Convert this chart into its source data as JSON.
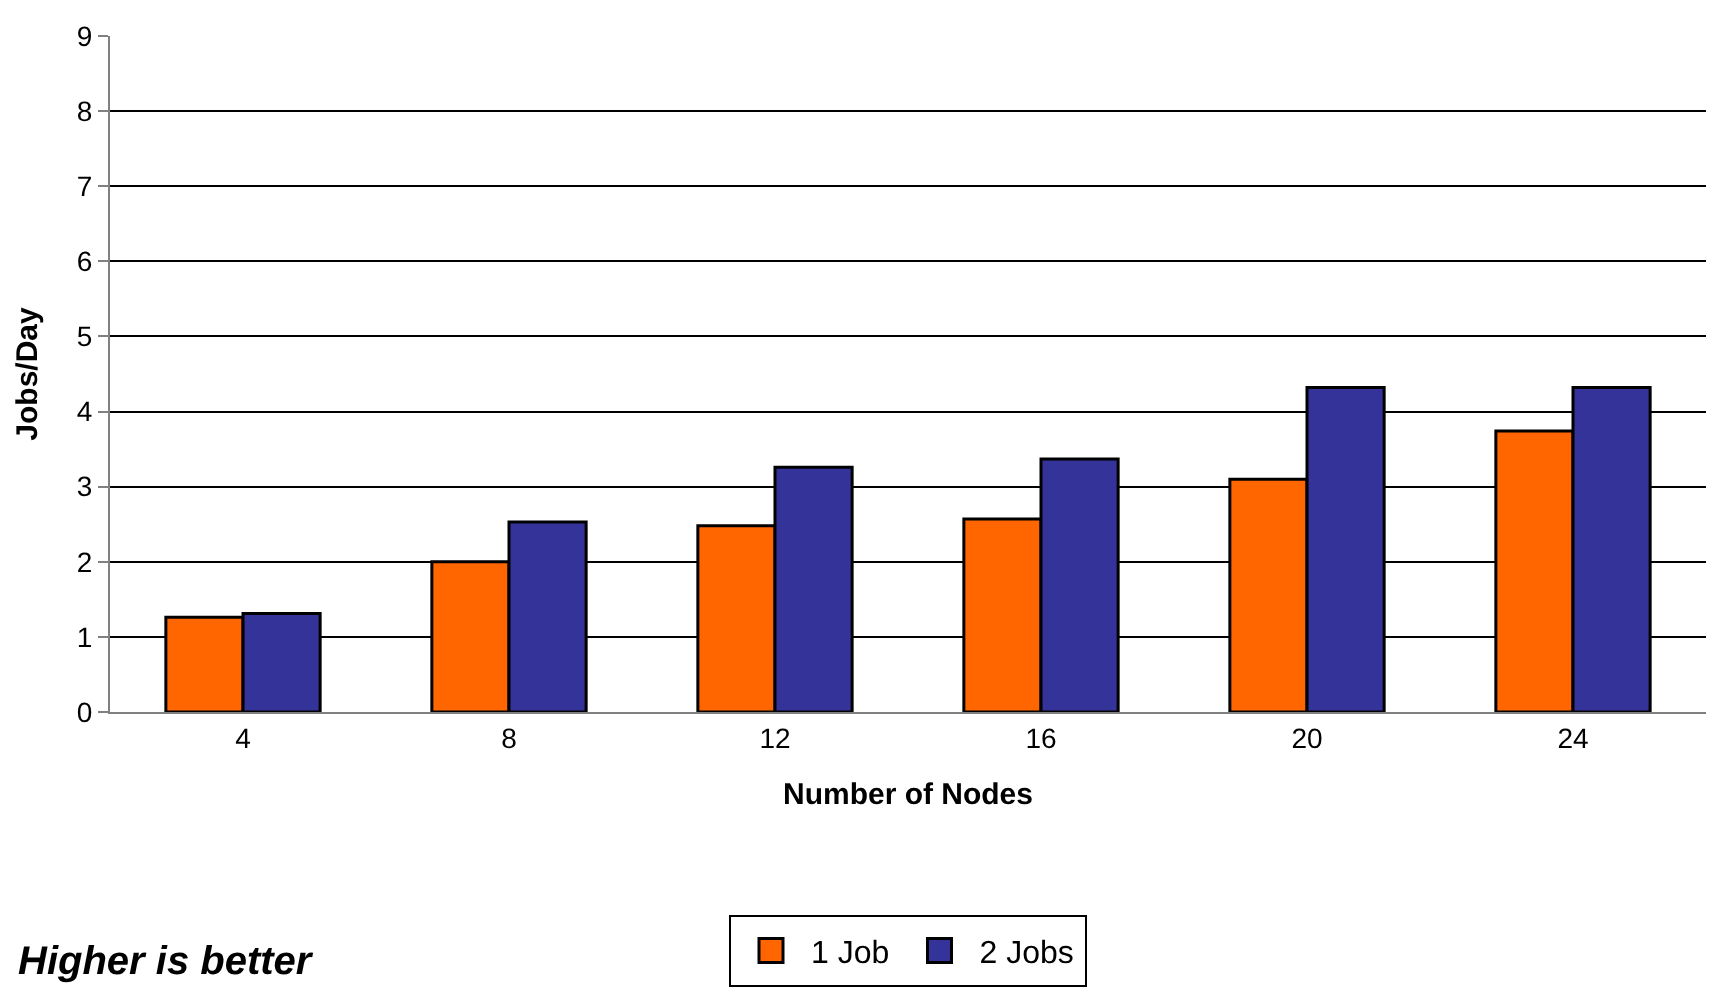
{
  "chart_data": {
    "type": "bar",
    "xlabel": "Number of Nodes",
    "ylabel": "Jobs/Day",
    "categories": [
      "4",
      "8",
      "12",
      "16",
      "20",
      "24"
    ],
    "series": [
      {
        "name": "1 Job",
        "color": "#ff6600",
        "values": [
          1.26,
          2.0,
          2.48,
          2.57,
          3.1,
          3.74
        ]
      },
      {
        "name": "2 Jobs",
        "color": "#333399",
        "values": [
          1.31,
          2.53,
          3.26,
          3.37,
          4.32,
          4.32
        ]
      }
    ],
    "ylim": [
      0,
      9
    ],
    "yticks": [
      0,
      1,
      2,
      3,
      4,
      5,
      6,
      7,
      8,
      9
    ],
    "grid": "y",
    "legend": "bottom",
    "annotations": [
      "Higher is better"
    ]
  }
}
